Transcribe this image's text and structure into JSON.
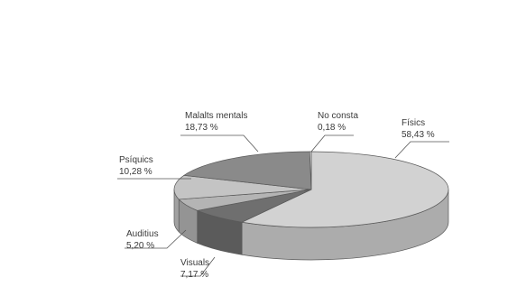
{
  "chart_data": {
    "type": "pie",
    "style": "3d",
    "title": "",
    "slices": [
      {
        "name": "Físics",
        "value": 58.43,
        "label": "58,43 %",
        "color": "#d2d2d2"
      },
      {
        "name": "Visuals",
        "value": 7.17,
        "label": "7,17 %",
        "color": "#6f6f6f"
      },
      {
        "name": "Auditius",
        "value": 5.2,
        "label": "5,20 %",
        "color": "#b4b4b4"
      },
      {
        "name": "Psíquics",
        "value": 10.28,
        "label": "10,28 %",
        "color": "#c4c4c4"
      },
      {
        "name": "Malalts mentals",
        "value": 18.73,
        "label": "18,73 %",
        "color": "#8a8a8a"
      },
      {
        "name": "No consta",
        "value": 0.18,
        "label": "0,18 %",
        "color": "#ededed"
      }
    ]
  }
}
